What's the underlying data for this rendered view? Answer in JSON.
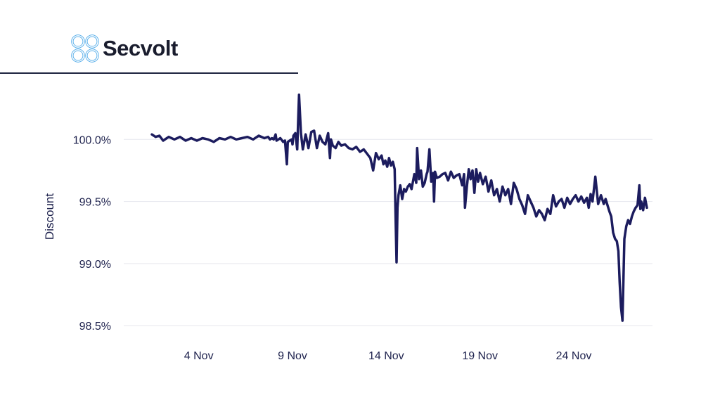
{
  "brand": {
    "name": "Secvolt",
    "logo_icon": "quad-loop-knot-icon",
    "logo_color": "#4aa8e8"
  },
  "colors": {
    "line": "#1c1c5e",
    "grid": "#e6e7ee",
    "text": "#20244f",
    "divider": "#1f2540"
  },
  "chart_data": {
    "type": "line",
    "title": "",
    "xlabel": "",
    "ylabel": "Discount",
    "xlim": [
      0.0,
      28.2
    ],
    "ylim": [
      98.45,
      100.33
    ],
    "x_ticks": [
      {
        "value": 4,
        "label": "4 Nov"
      },
      {
        "value": 9,
        "label": "9 Nov"
      },
      {
        "value": 14,
        "label": "14 Nov"
      },
      {
        "value": 19,
        "label": "19 Nov"
      },
      {
        "value": 24,
        "label": "24 Nov"
      }
    ],
    "y_ticks": [
      {
        "value": 100.0,
        "label": "100.0%"
      },
      {
        "value": 99.5,
        "label": "99.5%"
      },
      {
        "value": 99.0,
        "label": "99.0%"
      },
      {
        "value": 98.5,
        "label": "98.5%"
      }
    ],
    "grid": "horizontal",
    "series": [
      {
        "x": [
          1.5,
          1.7,
          1.9,
          2.1,
          2.4,
          2.7,
          3.0,
          3.3,
          3.6,
          3.9,
          4.2,
          4.5,
          4.8,
          5.1,
          5.4,
          5.7,
          6.0,
          6.3,
          6.6,
          6.9,
          7.2,
          7.5,
          7.7,
          7.8,
          7.9,
          8.0,
          8.1,
          8.15,
          8.25,
          8.35,
          8.5,
          8.6,
          8.7,
          8.75,
          8.85,
          8.95,
          9.0,
          9.05,
          9.15,
          9.25,
          9.35,
          9.45,
          9.55,
          9.7,
          9.85,
          10.0,
          10.15,
          10.3,
          10.45,
          10.6,
          10.75,
          10.9,
          11.0,
          11.05,
          11.15,
          11.3,
          11.45,
          11.6,
          11.8,
          12.0,
          12.2,
          12.4,
          12.6,
          12.8,
          13.0,
          13.15,
          13.3,
          13.45,
          13.6,
          13.75,
          13.85,
          13.95,
          14.05,
          14.15,
          14.25,
          14.35,
          14.45,
          14.5,
          14.55,
          14.6,
          14.65,
          14.75,
          14.85,
          14.95,
          15.05,
          15.15,
          15.25,
          15.35,
          15.5,
          15.6,
          15.65,
          15.75,
          15.85,
          15.95,
          16.05,
          16.15,
          16.2,
          16.3,
          16.4,
          16.5,
          16.55,
          16.6,
          16.7,
          16.85,
          17.0,
          17.15,
          17.3,
          17.45,
          17.6,
          17.75,
          17.9,
          18.05,
          18.15,
          18.2,
          18.3,
          18.4,
          18.5,
          18.6,
          18.7,
          18.8,
          18.9,
          19.0,
          19.15,
          19.3,
          19.45,
          19.6,
          19.75,
          19.9,
          20.05,
          20.2,
          20.35,
          20.5,
          20.65,
          20.8,
          20.95,
          21.1,
          21.25,
          21.4,
          21.55,
          21.7,
          21.85,
          22.0,
          22.15,
          22.3,
          22.45,
          22.6,
          22.75,
          22.9,
          23.05,
          23.2,
          23.35,
          23.5,
          23.65,
          23.8,
          23.95,
          24.1,
          24.25,
          24.4,
          24.55,
          24.7,
          24.8,
          24.9,
          25.0,
          25.15,
          25.3,
          25.45,
          25.6,
          25.7,
          25.8,
          25.9,
          26.0,
          26.1,
          26.2,
          26.3,
          26.38,
          26.45,
          26.52,
          26.6,
          26.7,
          26.8,
          26.9,
          27.0,
          27.1,
          27.2,
          27.3,
          27.4,
          27.5,
          27.55,
          27.6,
          27.7,
          27.8,
          27.9
        ],
        "y": [
          100.04,
          100.02,
          100.03,
          99.99,
          100.02,
          100.0,
          100.02,
          99.99,
          100.01,
          99.99,
          100.01,
          100.0,
          99.98,
          100.01,
          100.0,
          100.02,
          100.0,
          100.01,
          100.02,
          100.0,
          100.03,
          100.01,
          100.02,
          100.0,
          100.01,
          100.0,
          100.04,
          99.99,
          100.0,
          100.01,
          99.98,
          99.99,
          99.8,
          99.98,
          99.99,
          100.0,
          99.96,
          100.03,
          100.05,
          99.92,
          100.36,
          100.05,
          99.92,
          100.04,
          99.93,
          100.06,
          100.07,
          99.93,
          100.03,
          99.98,
          99.96,
          100.05,
          99.85,
          100.0,
          99.95,
          99.93,
          99.98,
          99.95,
          99.96,
          99.93,
          99.92,
          99.94,
          99.9,
          99.92,
          99.88,
          99.85,
          99.75,
          99.89,
          99.84,
          99.87,
          99.8,
          99.83,
          99.78,
          99.85,
          99.79,
          99.82,
          99.76,
          99.35,
          99.01,
          99.45,
          99.55,
          99.63,
          99.52,
          99.6,
          99.58,
          99.62,
          99.64,
          99.6,
          99.72,
          99.65,
          99.93,
          99.68,
          99.75,
          99.62,
          99.65,
          99.72,
          99.74,
          99.92,
          99.66,
          99.73,
          99.5,
          99.74,
          99.69,
          99.7,
          99.72,
          99.73,
          99.67,
          99.74,
          99.69,
          99.71,
          99.72,
          99.63,
          99.72,
          99.45,
          99.62,
          99.76,
          99.68,
          99.75,
          99.57,
          99.76,
          99.66,
          99.73,
          99.64,
          99.7,
          99.58,
          99.67,
          99.55,
          99.6,
          99.5,
          99.62,
          99.55,
          99.6,
          99.48,
          99.65,
          99.6,
          99.52,
          99.47,
          99.4,
          99.55,
          99.5,
          99.45,
          99.38,
          99.43,
          99.4,
          99.35,
          99.44,
          99.4,
          99.55,
          99.46,
          99.5,
          99.52,
          99.45,
          99.53,
          99.48,
          99.52,
          99.55,
          99.5,
          99.54,
          99.49,
          99.53,
          99.45,
          99.56,
          99.5,
          99.7,
          99.48,
          99.55,
          99.48,
          99.52,
          99.47,
          99.42,
          99.38,
          99.25,
          99.2,
          99.18,
          99.1,
          98.85,
          98.65,
          98.54,
          99.2,
          99.3,
          99.35,
          99.32,
          99.38,
          99.42,
          99.45,
          99.47,
          99.63,
          99.44,
          99.5,
          99.43,
          99.53,
          99.45
        ]
      }
    ]
  }
}
